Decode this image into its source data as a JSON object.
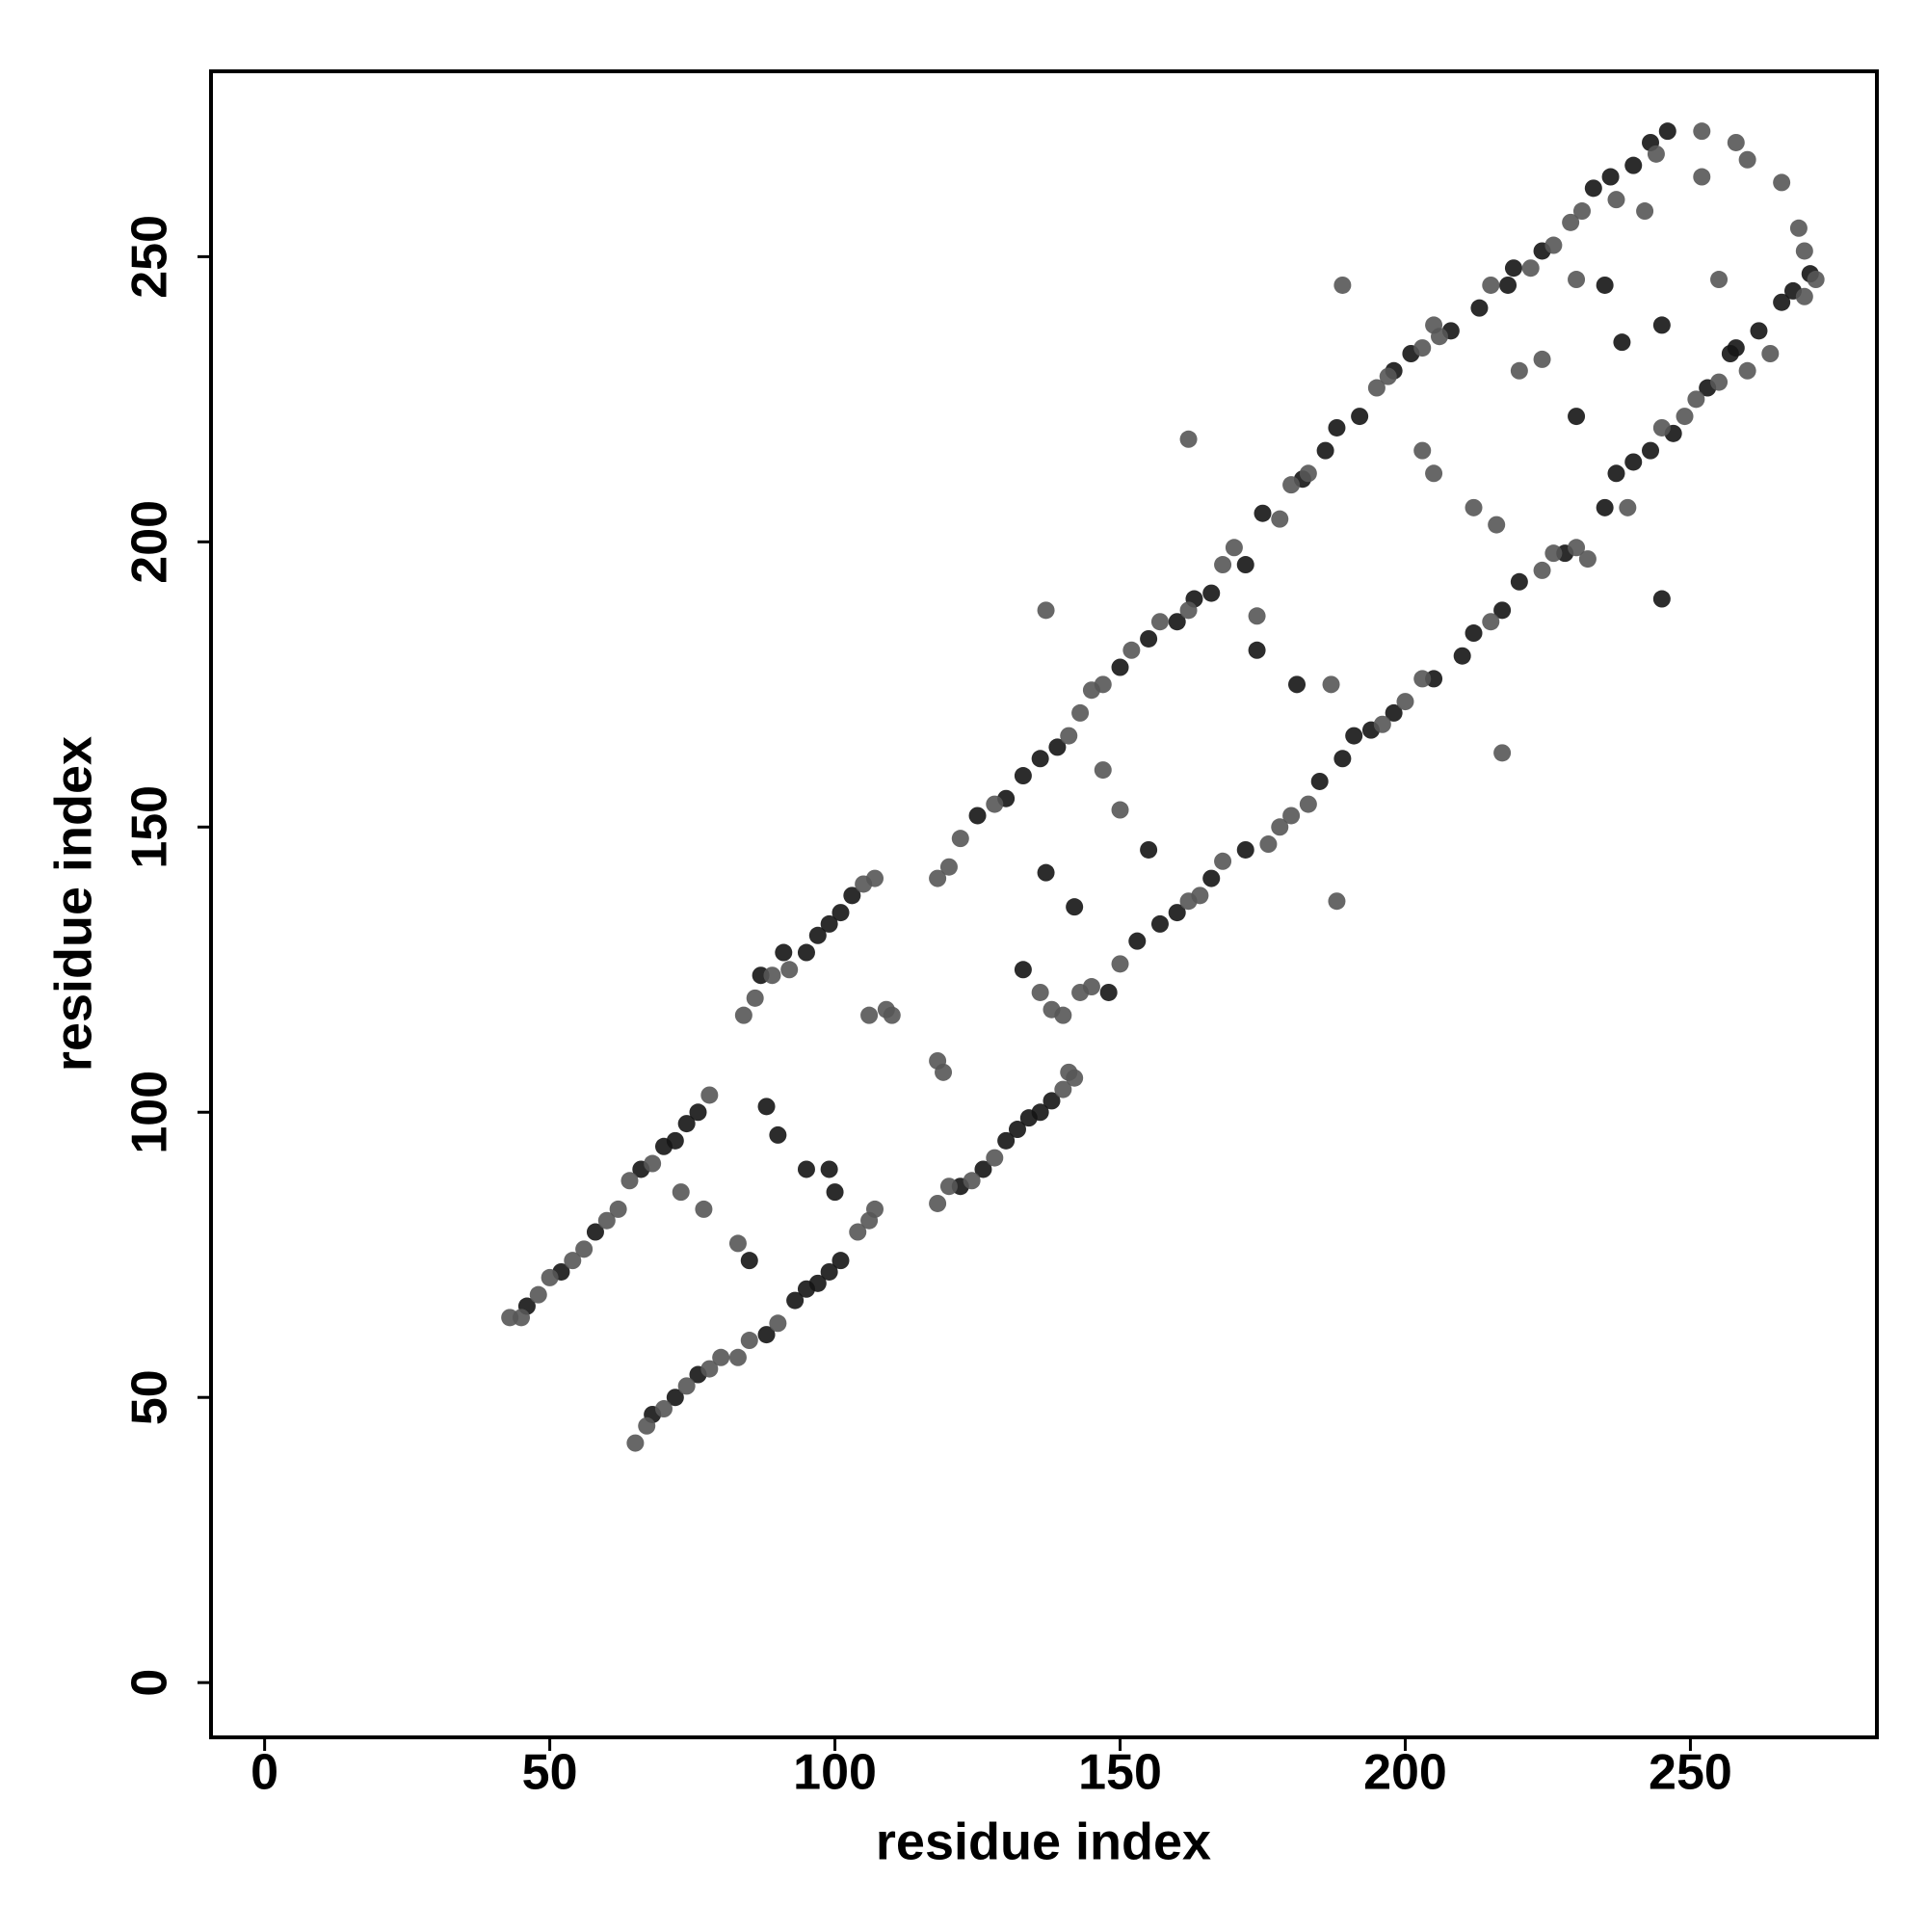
{
  "chart_data": {
    "type": "scatter",
    "xlabel": "residue index",
    "ylabel": "residue index",
    "xlim": [
      -9.4,
      282.7
    ],
    "ylim": [
      -9.6,
      282.5
    ],
    "xticks": [
      0,
      50,
      100,
      150,
      200,
      250
    ],
    "yticks": [
      0,
      50,
      100,
      150,
      200,
      250
    ],
    "series": [
      {
        "color": "#151515",
        "x": [
          46,
          52,
          58,
          66,
          70,
          72,
          74,
          76,
          87,
          91,
          95,
          97,
          99,
          101,
          103,
          68,
          72,
          76,
          88,
          93,
          95,
          97,
          99,
          101,
          122,
          126,
          130,
          132,
          134,
          136,
          138,
          125,
          130,
          133,
          136,
          139,
          150,
          155,
          160,
          163,
          166,
          172,
          175,
          182,
          186,
          188,
          192,
          198,
          201,
          208,
          213,
          218,
          219,
          224,
          233,
          236,
          240,
          243,
          246,
          148,
          153,
          157,
          160,
          166,
          172,
          185,
          189,
          191,
          194,
          198,
          205,
          210,
          212,
          217,
          220,
          228,
          235,
          237,
          240,
          243,
          247,
          253,
          257,
          262,
          266,
          268,
          271,
          88,
          90,
          95,
          99,
          100,
          85,
          133,
          137,
          142,
          155,
          174,
          181,
          235,
          238,
          245,
          230,
          245,
          258
        ],
        "values": [
          66,
          72,
          79,
          90,
          94,
          95,
          98,
          100,
          124,
          128,
          128,
          131,
          133,
          135,
          138,
          47,
          50,
          54,
          61,
          67,
          69,
          70,
          72,
          74,
          87,
          90,
          95,
          97,
          99,
          100,
          102,
          152,
          155,
          159,
          162,
          164,
          178,
          183,
          186,
          190,
          191,
          196,
          205,
          211,
          216,
          220,
          222,
          230,
          233,
          237,
          241,
          245,
          248,
          251,
          262,
          264,
          266,
          270,
          272,
          121,
          130,
          133,
          135,
          141,
          146,
          158,
          162,
          166,
          167,
          170,
          176,
          180,
          184,
          188,
          193,
          198,
          206,
          212,
          214,
          216,
          219,
          227,
          233,
          237,
          242,
          244,
          247,
          101,
          96,
          90,
          90,
          86,
          74,
          125,
          142,
          136,
          146,
          181,
          175,
          245,
          235,
          190,
          222,
          238,
          234
        ]
      },
      {
        "color": "#565656",
        "x": [
          43,
          45,
          48,
          50,
          54,
          56,
          60,
          62,
          64,
          78,
          68,
          84,
          86,
          89,
          92,
          105,
          107,
          106,
          65,
          67,
          70,
          74,
          78,
          80,
          83,
          85,
          90,
          104,
          106,
          107,
          118,
          120,
          124,
          128,
          140,
          142,
          141,
          118,
          120,
          122,
          128,
          141,
          143,
          145,
          147,
          152,
          157,
          162,
          168,
          170,
          178,
          180,
          183,
          195,
          197,
          203,
          205,
          206,
          215,
          222,
          226,
          229,
          231,
          237,
          244,
          138,
          140,
          143,
          145,
          150,
          162,
          164,
          168,
          176,
          178,
          180,
          183,
          196,
          200,
          203,
          215,
          224,
          226,
          230,
          232,
          239,
          245,
          249,
          251,
          255,
          260,
          264,
          270,
          272,
          252,
          258,
          260,
          266,
          269,
          270,
          137,
          189,
          162,
          188,
          217,
          109,
          110,
          118,
          119,
          77,
          73,
          83,
          150,
          147,
          174,
          187,
          203,
          205,
          212,
          216,
          230,
          224,
          255,
          252,
          242,
          220,
          136
        ],
        "values": [
          64,
          64,
          68,
          71,
          74,
          76,
          81,
          83,
          88,
          103,
          91,
          117,
          120,
          124,
          125,
          140,
          141,
          117,
          42,
          45,
          48,
          52,
          55,
          57,
          57,
          60,
          63,
          79,
          81,
          83,
          84,
          87,
          88,
          92,
          104,
          106,
          107,
          141,
          143,
          148,
          154,
          166,
          170,
          174,
          175,
          181,
          186,
          188,
          196,
          199,
          204,
          210,
          212,
          227,
          229,
          234,
          238,
          236,
          245,
          248,
          252,
          256,
          258,
          260,
          268,
          118,
          117,
          121,
          122,
          126,
          137,
          138,
          144,
          147,
          150,
          152,
          154,
          168,
          172,
          176,
          186,
          195,
          198,
          199,
          197,
          206,
          220,
          222,
          225,
          228,
          230,
          233,
          243,
          246,
          272,
          270,
          267,
          263,
          255,
          251,
          188,
          245,
          218,
          137,
          163,
          118,
          117,
          109,
          107,
          83,
          86,
          77,
          153,
          160,
          187,
          175,
          216,
          212,
          206,
          203,
          246,
          232,
          246,
          264,
          258,
          230,
          121
        ]
      }
    ]
  }
}
